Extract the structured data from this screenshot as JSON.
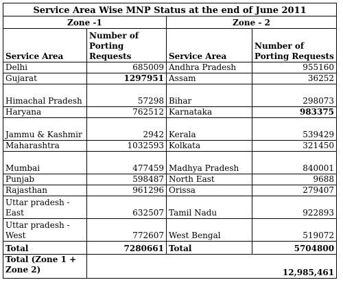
{
  "title": "Service Area Wise MNP Status at the end of June 2011",
  "zone1_label": "Zone -1",
  "zone2_label": "Zone - 2",
  "col_service_area": "Service Area",
  "col_requests": "Number of Porting Requests",
  "rows": [
    {
      "a1": "Delhi",
      "v1": "685009",
      "a2": "Andhra Pradesh",
      "v2": "955160"
    },
    {
      "a1": "Gujarat",
      "v1": "1297951",
      "a2": "Assam",
      "v2": "36252"
    },
    {
      "a1": "Himachal Pradesh",
      "v1": "57298",
      "a2": "Bihar",
      "v2": "298073"
    },
    {
      "a1": "Haryana",
      "v1": "762512",
      "a2": "Karnataka",
      "v2": "983375"
    },
    {
      "a1": "Jammu & Kashmir",
      "v1": "2942",
      "a2": "Kerala",
      "v2": "539429"
    },
    {
      "a1": "Maharashtra",
      "v1": "1032593",
      "a2": "Kolkata",
      "v2": "321450"
    },
    {
      "a1": "Mumbai",
      "v1": "477459",
      "a2": "Madhya Pradesh",
      "v2": "840001"
    },
    {
      "a1": "Punjab",
      "v1": "598487",
      "a2": "North East",
      "v2": "9688"
    },
    {
      "a1": "Rajasthan",
      "v1": "961296",
      "a2": "Orissa",
      "v2": "279407"
    },
    {
      "a1": "Uttar pradesh - East",
      "v1": "632507",
      "a2": "Tamil Nadu",
      "v2": "922893"
    },
    {
      "a1": "Uttar pradesh - West",
      "v1": "772607",
      "a2": "West Bengal",
      "v2": "519072"
    }
  ],
  "total_label": "Total",
  "total_zone1": "7280661",
  "total_zone2": "5704800",
  "grand_label": "Total (Zone 1 + Zone 2)",
  "grand_total": "12,985,461"
}
